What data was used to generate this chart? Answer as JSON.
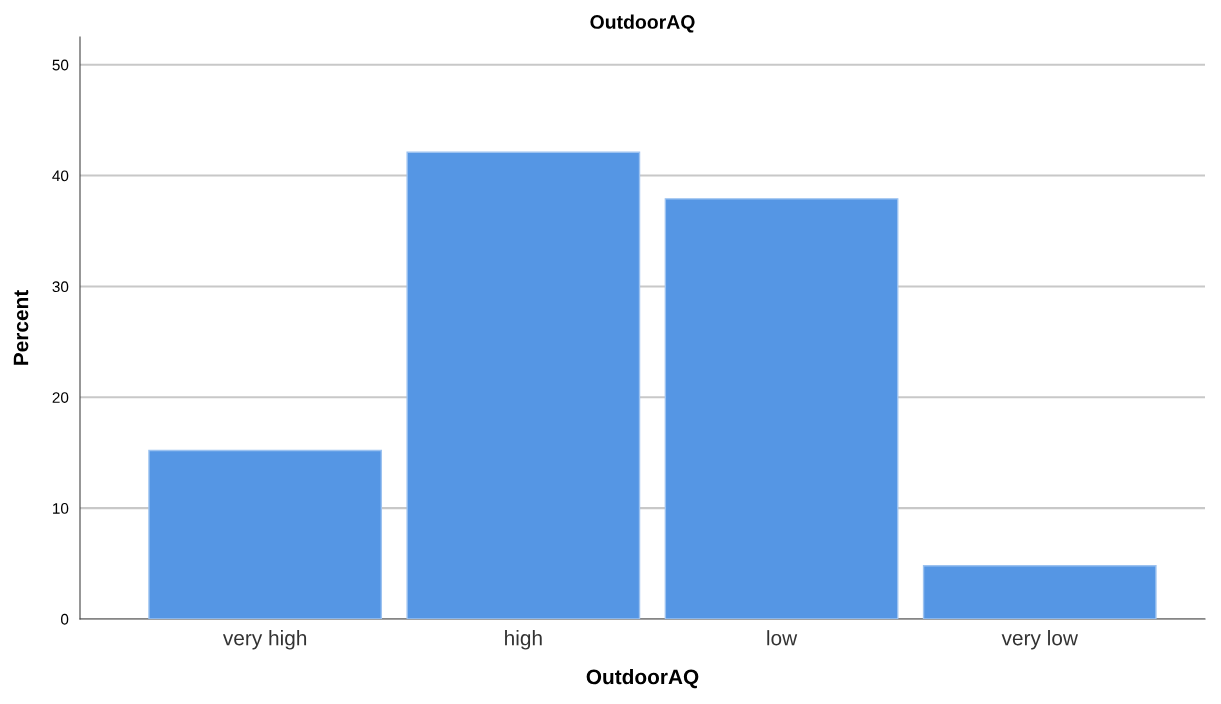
{
  "chart_data": {
    "type": "bar",
    "title": "OutdoorAQ",
    "xlabel": "OutdoorAQ",
    "ylabel": "Percent",
    "categories": [
      "very high",
      "high",
      "low",
      "very low"
    ],
    "values": [
      15.2,
      42.1,
      37.9,
      4.8
    ],
    "color": "#5596e4",
    "ylim": [
      0,
      52.5
    ],
    "yticks": [
      0,
      10,
      20,
      30,
      40,
      50
    ],
    "grid": "y"
  }
}
